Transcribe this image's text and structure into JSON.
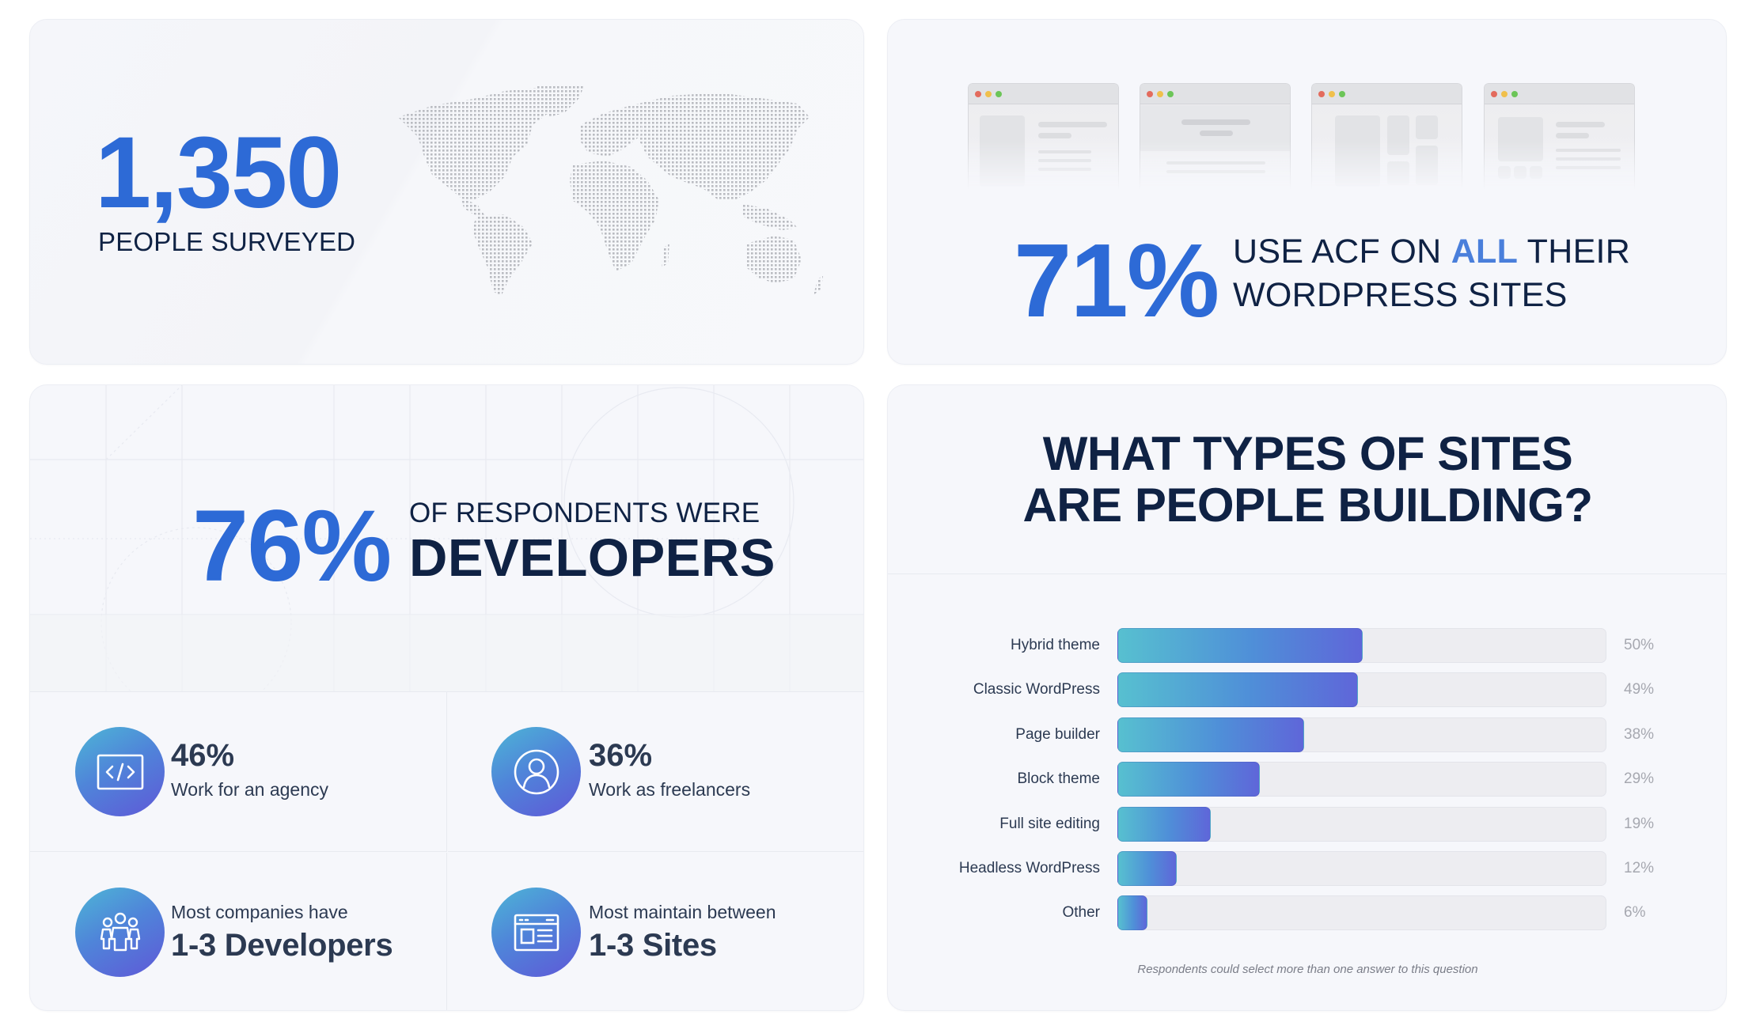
{
  "surveyed": {
    "number": "1,350",
    "label": "PEOPLE SURVEYED",
    "map_icon": "world-map-dots"
  },
  "acf": {
    "number": "71%",
    "line1_pre": "USE ACF ON ",
    "line1_highlight": "ALL",
    "line1_post": " THEIR",
    "line2": "WORDPRESS SITES",
    "highlight_color": "#4a7fdb",
    "browser_icons": [
      "browser-window-layout-1",
      "browser-window-layout-2",
      "browser-window-layout-3",
      "browser-window-layout-4"
    ]
  },
  "developers": {
    "number": "76%",
    "sub": "OF RESPONDENTS WERE",
    "strong": "DEVELOPERS",
    "stats": [
      {
        "icon": "code-window-icon",
        "big": "46%",
        "small": "Work for an agency"
      },
      {
        "icon": "user-circle-icon",
        "big": "36%",
        "small": "Work as freelancers"
      },
      {
        "icon": "team-people-icon",
        "lead": "Most companies have",
        "strong": "1-3 Developers"
      },
      {
        "icon": "website-layout-icon",
        "lead": "Most maintain between",
        "strong": "1-3 Sites"
      }
    ]
  },
  "sites": {
    "title_line1": "WHAT TYPES OF SITES",
    "title_line2": "ARE PEOPLE BUILDING?",
    "footnote": "Respondents could select more than one answer to this question"
  },
  "colors": {
    "accent_blue": "#2d6ad6",
    "navy": "#0f2244",
    "bar_gradient_start": "#57c0d0",
    "bar_gradient_end": "#5f66d9",
    "track": "#ededf1",
    "card_bg": "#f6f7fb"
  },
  "chart_data": {
    "type": "bar",
    "orientation": "horizontal",
    "title": "WHAT TYPES OF SITES ARE PEOPLE BUILDING?",
    "categories": [
      "Hybrid theme",
      "Classic WordPress",
      "Page builder",
      "Block theme",
      "Full site editing",
      "Headless WordPress",
      "Other"
    ],
    "values": [
      50,
      49,
      38,
      29,
      19,
      12,
      6
    ],
    "value_labels": [
      "50%",
      "49%",
      "38%",
      "29%",
      "19%",
      "12%",
      "6%"
    ],
    "xlabel": "",
    "ylabel": "",
    "xlim": [
      0,
      100
    ],
    "grid": false,
    "legend": "none",
    "annotation": "Respondents could select more than one answer to this question"
  }
}
